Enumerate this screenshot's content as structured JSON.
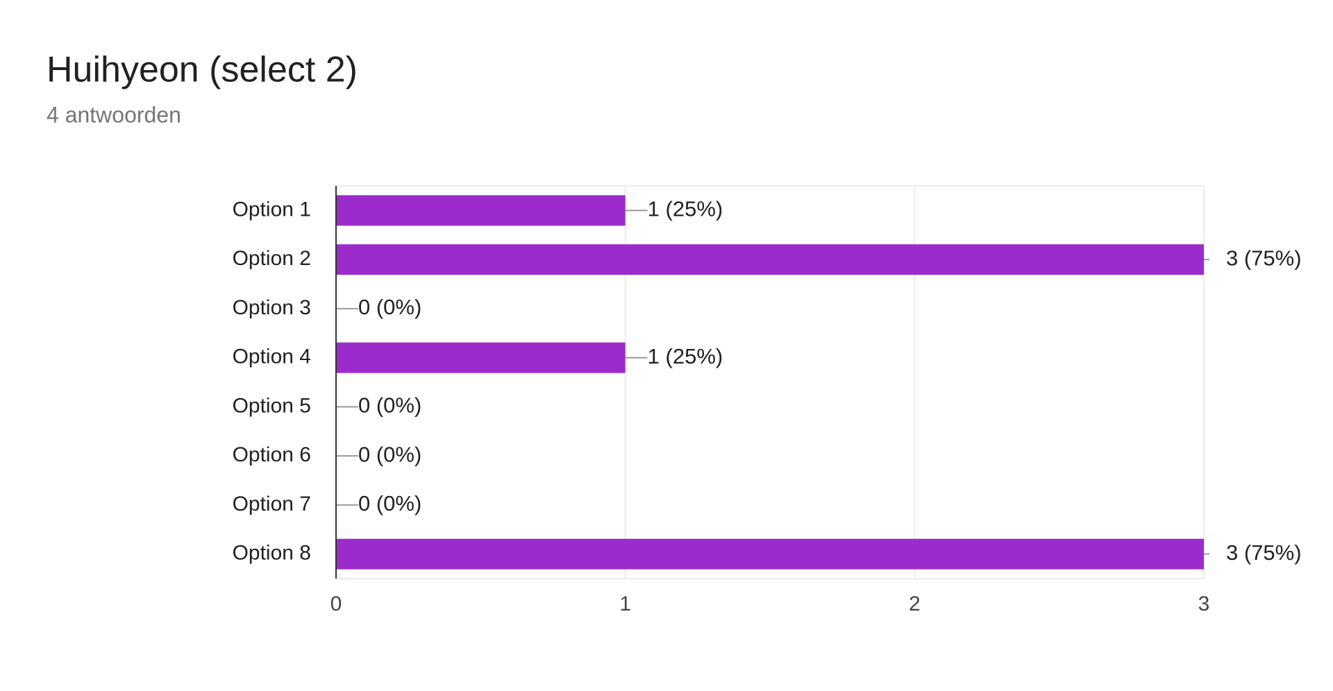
{
  "chart_data": {
    "type": "bar",
    "orientation": "horizontal",
    "title": "Huihyeon (select 2)",
    "subtitle": "4 antwoorden",
    "categories": [
      "Option 1",
      "Option 2",
      "Option 3",
      "Option 4",
      "Option 5",
      "Option 6",
      "Option 7",
      "Option 8"
    ],
    "values": [
      1,
      3,
      0,
      1,
      0,
      0,
      0,
      3
    ],
    "value_labels": [
      "1 (25%)",
      "3 (75%)",
      "0 (0%)",
      "1 (25%)",
      "0 (0%)",
      "0 (0%)",
      "0 (0%)",
      "3 (75%)"
    ],
    "color": "#9c2bcc",
    "xlim": [
      0,
      3
    ],
    "xticks": [
      0,
      1,
      2,
      3
    ],
    "grid": true
  }
}
